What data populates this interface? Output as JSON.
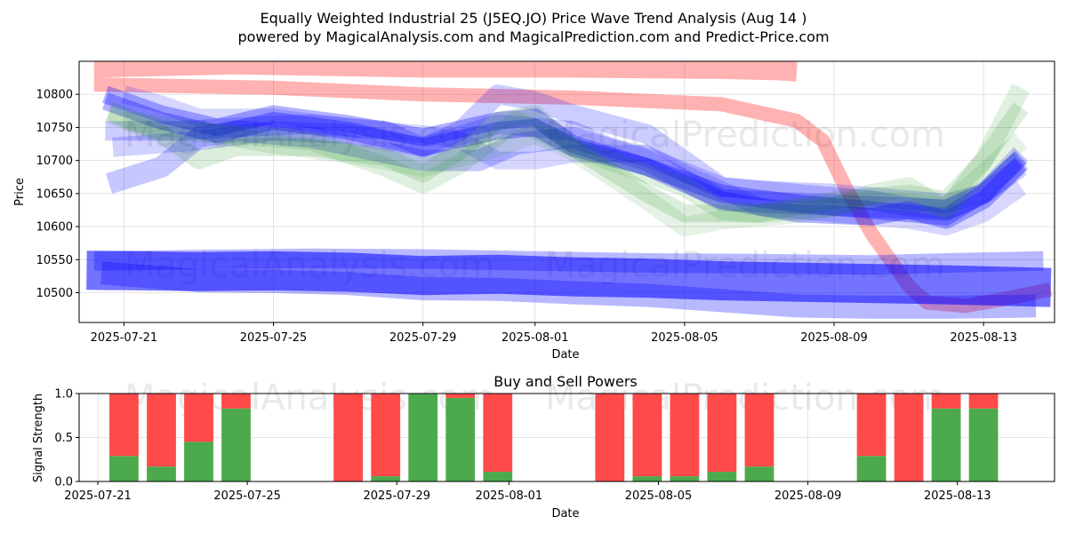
{
  "chart_data": [
    {
      "type": "line",
      "title_line1": "Equally Weighted Industrial 25  (J5EQ.JO) Price Wave Trend Analysis (Aug 14 )",
      "title_line2": "powered by MagicalAnalysis.com and MagicalPrediction.com and Predict-Price.com",
      "xlabel": "Date",
      "ylabel": "Price",
      "ylim": [
        10455,
        10850
      ],
      "yticks": [
        10500,
        10550,
        10600,
        10650,
        10700,
        10750,
        10800
      ],
      "xlim": [
        -1.2,
        24.9
      ],
      "xticks": [
        {
          "day": 0,
          "label": "2025-07-21"
        },
        {
          "day": 4,
          "label": "2025-07-25"
        },
        {
          "day": 8,
          "label": "2025-07-29"
        },
        {
          "day": 11,
          "label": "2025-08-01"
        },
        {
          "day": 15,
          "label": "2025-08-05"
        },
        {
          "day": 19,
          "label": "2025-08-09"
        },
        {
          "day": 23,
          "label": "2025-08-13"
        }
      ],
      "grid": true,
      "watermarks": [
        "MagicalAnalysis.com",
        "MagicalPrediction.com",
        "MagicalAnalysis.com",
        "MagicalPrediction.com"
      ],
      "bands": [
        {
          "color": "#ff0000",
          "opacity": 0.3,
          "width": 16,
          "x": [
            -0.8,
            4,
            8,
            12,
            16,
            18,
            18.7,
            19.3,
            20,
            21,
            21.5,
            22.5,
            23.5,
            24.8
          ],
          "y": [
            10815,
            10810,
            10800,
            10795,
            10785,
            10760,
            10730,
            10660,
            10590,
            10510,
            10485,
            10480,
            10490,
            10505
          ]
        },
        {
          "color": "#ff0000",
          "opacity": 0.3,
          "width": 22,
          "x": [
            -0.8,
            3,
            8,
            12,
            16,
            17.5,
            18
          ],
          "y": [
            10840,
            10845,
            10840,
            10840,
            10838,
            10836,
            10834
          ]
        },
        {
          "color": "#0000ff",
          "opacity": 0.55,
          "width": 44,
          "x": [
            -1.0,
            2,
            4,
            6,
            8,
            10,
            12,
            14,
            16,
            18,
            20,
            22,
            24.8
          ],
          "y": [
            10534,
            10532,
            10533,
            10531,
            10526,
            10528,
            10524,
            10522,
            10518,
            10516,
            10514,
            10512,
            10508
          ]
        },
        {
          "color": "#0000ff",
          "opacity": 0.28,
          "width": 26,
          "x": [
            -0.6,
            2,
            4,
            6,
            8,
            10,
            12,
            14,
            16,
            18,
            20,
            22,
            24.4
          ],
          "y": [
            10530,
            10518,
            10517,
            10514,
            10506,
            10505,
            10500,
            10496,
            10488,
            10480,
            10478,
            10478,
            10480
          ]
        },
        {
          "color": "#0000ff",
          "opacity": 0.28,
          "width": 22,
          "x": [
            -0.8,
            2,
            5,
            8,
            11,
            14,
            17,
            20,
            22,
            24.6
          ],
          "y": [
            10548,
            10550,
            10552,
            10551,
            10548,
            10545,
            10544,
            10542,
            10545,
            10548
          ]
        },
        {
          "color": "#0000ff",
          "opacity": 0.3,
          "width": 20,
          "x": [
            -0.5,
            1,
            2.5,
            4,
            6,
            8,
            10,
            11,
            12,
            14,
            16,
            18,
            20,
            21,
            22,
            23,
            24
          ],
          "y": [
            10800,
            10770,
            10750,
            10770,
            10755,
            10735,
            10760,
            10765,
            10725,
            10690,
            10650,
            10635,
            10625,
            10620,
            10615,
            10650,
            10705
          ]
        },
        {
          "color": "#0000ff",
          "opacity": 0.3,
          "width": 20,
          "x": [
            -0.5,
            1,
            2.5,
            4,
            6,
            8,
            10,
            11,
            12,
            14,
            16,
            18,
            20,
            21,
            22,
            23,
            24
          ],
          "y": [
            10790,
            10760,
            10740,
            10760,
            10745,
            10720,
            10745,
            10750,
            10720,
            10690,
            10640,
            10620,
            10615,
            10625,
            10610,
            10640,
            10695
          ]
        },
        {
          "color": "#0000ff",
          "opacity": 0.2,
          "width": 22,
          "x": [
            -0.5,
            1.5,
            3,
            5,
            7,
            8,
            9,
            10,
            11,
            12,
            14,
            15,
            16,
            18,
            20,
            21,
            22,
            23,
            24
          ],
          "y": [
            10745,
            10745,
            10750,
            10755,
            10745,
            10720,
            10745,
            10800,
            10790,
            10770,
            10740,
            10700,
            10660,
            10650,
            10640,
            10630,
            10625,
            10650,
            10710
          ]
        },
        {
          "color": "#0000ff",
          "opacity": 0.22,
          "width": 24,
          "x": [
            -0.4,
            1,
            2,
            3,
            5,
            8,
            9.5,
            10.5,
            12,
            14,
            16,
            18,
            20,
            22,
            23,
            24
          ],
          "y": [
            10665,
            10690,
            10735,
            10745,
            10735,
            10700,
            10700,
            10725,
            10735,
            10700,
            10640,
            10635,
            10630,
            10625,
            10650,
            10700
          ]
        },
        {
          "color": "#0000ff",
          "opacity": 0.18,
          "width": 22,
          "x": [
            -0.3,
            2,
            4,
            6,
            8,
            10,
            12,
            13,
            14,
            16,
            17,
            19,
            21,
            22,
            23,
            24
          ],
          "y": [
            10720,
            10730,
            10745,
            10740,
            10720,
            10755,
            10745,
            10720,
            10705,
            10660,
            10655,
            10650,
            10640,
            10635,
            10650,
            10690
          ]
        },
        {
          "color": "#0000ff",
          "opacity": 0.16,
          "width": 20,
          "x": [
            0,
            1,
            2,
            4,
            6,
            8,
            9,
            10,
            11,
            12,
            14,
            15,
            17,
            19,
            21,
            22,
            23,
            24
          ],
          "y": [
            10800,
            10785,
            10765,
            10765,
            10750,
            10740,
            10730,
            10700,
            10700,
            10710,
            10710,
            10680,
            10630,
            10620,
            10610,
            10600,
            10620,
            10660
          ]
        },
        {
          "color": "#008000",
          "opacity": 0.14,
          "width": 20,
          "x": [
            -0.4,
            1,
            2,
            3,
            5,
            7,
            8,
            9,
            10,
            11,
            12,
            14,
            15,
            17,
            19,
            21,
            22,
            23,
            24
          ],
          "y": [
            10770,
            10740,
            10700,
            10720,
            10720,
            10705,
            10680,
            10715,
            10760,
            10770,
            10720,
            10650,
            10620,
            10620,
            10640,
            10650,
            10640,
            10700,
            10780
          ]
        },
        {
          "color": "#008000",
          "opacity": 0.12,
          "width": 22,
          "x": [
            -0.4,
            1,
            3,
            5,
            7,
            8,
            9,
            10.5,
            12,
            13,
            14,
            15,
            16,
            17,
            19,
            20,
            21,
            22,
            23,
            24
          ],
          "y": [
            10775,
            10745,
            10740,
            10730,
            10690,
            10665,
            10695,
            10760,
            10720,
            10700,
            10680,
            10660,
            10625,
            10620,
            10630,
            10650,
            10660,
            10625,
            10700,
            10810
          ]
        },
        {
          "color": "#008000",
          "opacity": 0.1,
          "width": 22,
          "x": [
            0,
            2,
            4,
            6,
            8,
            10,
            11,
            12,
            14,
            15,
            16,
            18,
            20,
            22,
            23,
            24
          ],
          "y": [
            10760,
            10745,
            10725,
            10710,
            10690,
            10720,
            10740,
            10715,
            10640,
            10600,
            10610,
            10620,
            10640,
            10630,
            10680,
            10730
          ]
        }
      ]
    },
    {
      "type": "bar",
      "title": "Buy and Sell Powers",
      "xlabel": "Date",
      "ylabel": "Signal Strength",
      "ylim": [
        0,
        1
      ],
      "yticks": [
        {
          "value": 0.0,
          "label": "0.0"
        },
        {
          "value": 0.5,
          "label": "0.5"
        },
        {
          "value": 1.0,
          "label": "1.0"
        }
      ],
      "xlim": [
        -1.2,
        24.9
      ],
      "xticks": [
        {
          "day": -0.7,
          "label": "2025-07-21"
        },
        {
          "day": 3.3,
          "label": "2025-07-25"
        },
        {
          "day": 7.3,
          "label": "2025-07-29"
        },
        {
          "day": 10.3,
          "label": "2025-08-01"
        },
        {
          "day": 14.3,
          "label": "2025-08-05"
        },
        {
          "day": 18.3,
          "label": "2025-08-09"
        },
        {
          "day": 22.3,
          "label": "2025-08-13"
        }
      ],
      "grid": true,
      "buy_color": "#4caa4c",
      "sell_color": "#ff4a4a",
      "bar_width": 0.78,
      "watermarks": [
        "MagicalAnalysis.com",
        "MagicalPrediction.com"
      ],
      "bars": [
        {
          "day": 0,
          "buy": 0.29
        },
        {
          "day": 1,
          "buy": 0.17
        },
        {
          "day": 2,
          "buy": 0.45
        },
        {
          "day": 3,
          "buy": 0.83
        },
        {
          "day": 6,
          "buy": 0.0
        },
        {
          "day": 7,
          "buy": 0.06
        },
        {
          "day": 8,
          "buy": 1.0
        },
        {
          "day": 9,
          "buy": 0.95
        },
        {
          "day": 10,
          "buy": 0.11
        },
        {
          "day": 13,
          "buy": 0.0
        },
        {
          "day": 14,
          "buy": 0.06
        },
        {
          "day": 15,
          "buy": 0.06
        },
        {
          "day": 16,
          "buy": 0.11
        },
        {
          "day": 17,
          "buy": 0.17
        },
        {
          "day": 20,
          "buy": 0.29
        },
        {
          "day": 21,
          "buy": 0.0
        },
        {
          "day": 22,
          "buy": 0.83
        },
        {
          "day": 23,
          "buy": 0.83
        }
      ]
    }
  ]
}
